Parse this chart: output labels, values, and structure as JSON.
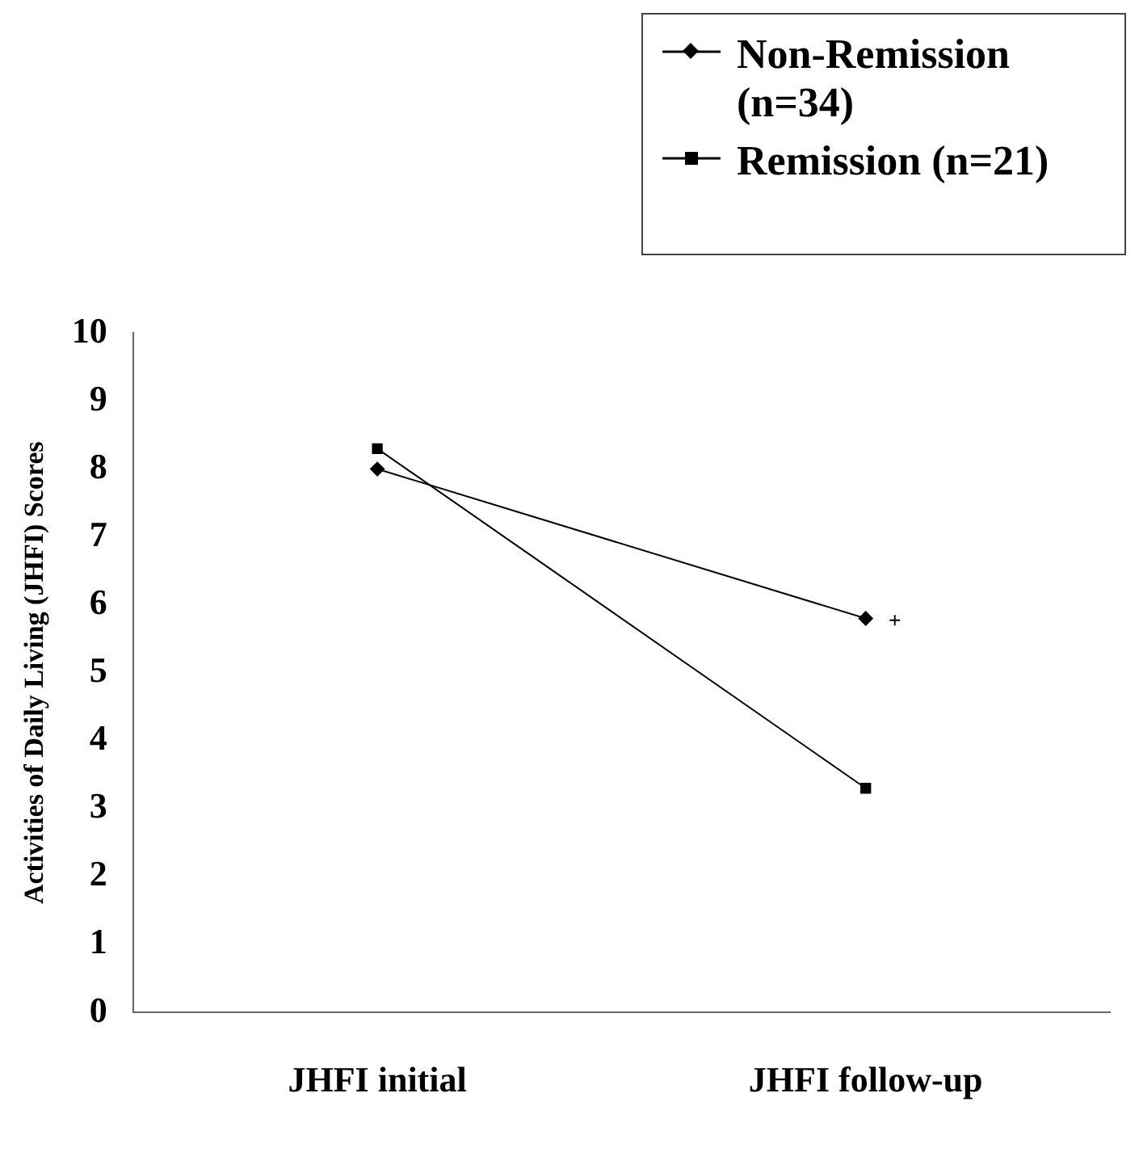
{
  "chart_data": {
    "type": "line",
    "ylabel": "Activities of Daily Living (JHFI) Scores",
    "categories": [
      "JHFI initial",
      "JHFI follow-up"
    ],
    "series": [
      {
        "name": "Non-Remission (n=34)",
        "color": "#000000",
        "marker": "diamond",
        "values": [
          8.0,
          5.8
        ]
      },
      {
        "name": "Remission (n=21)",
        "color": "#000000",
        "marker": "square",
        "values": [
          8.3,
          3.3
        ]
      }
    ],
    "ylim": [
      0,
      10
    ],
    "yticks": [
      0,
      1,
      2,
      3,
      4,
      5,
      6,
      7,
      8,
      9,
      10
    ],
    "grid": false,
    "legend": "top right",
    "line_style": "solid",
    "annotations": [
      {
        "text": "+",
        "x": "JHFI follow-up",
        "y": 5.8
      }
    ]
  }
}
